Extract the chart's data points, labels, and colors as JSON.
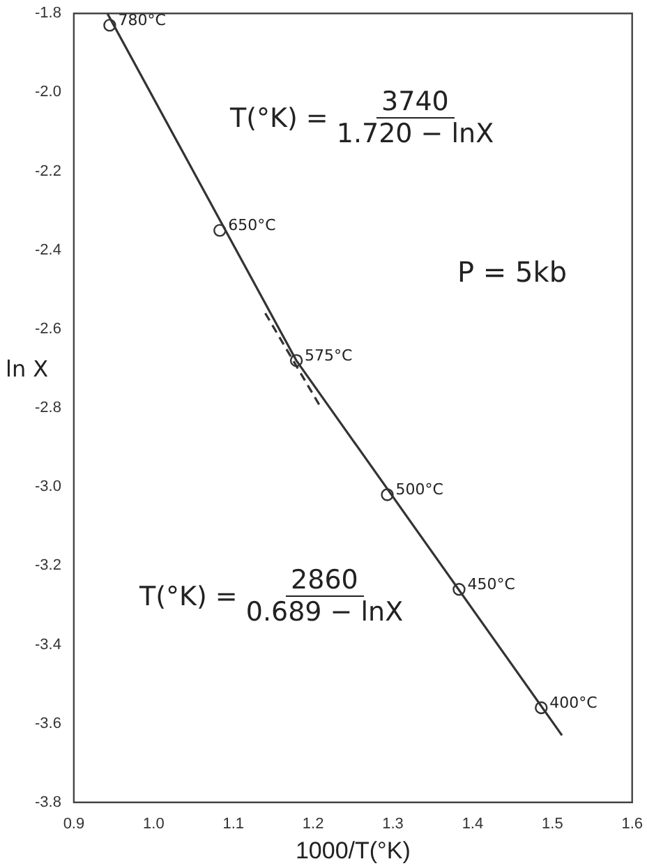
{
  "chart_data": {
    "type": "scatter",
    "xlabel": "1000/T(°K)",
    "ylabel": "ln X",
    "xlim": [
      0.9,
      1.6
    ],
    "xticks": [
      0.9,
      {
        "value": 1.0,
        "label": "1.0"
      },
      1.1,
      1.2,
      1.3,
      1.4,
      1.5,
      1.6
    ],
    "ylim": [
      -3.8,
      -1.8
    ],
    "yticks": [
      -3.8,
      -3.6,
      -3.4,
      -3.2,
      {
        "value": -3.0,
        "label": "-3.0"
      },
      -2.8,
      -2.6,
      -2.4,
      -2.2,
      {
        "value": -2.0,
        "label": "-2.0"
      },
      -1.8
    ],
    "grid": false,
    "legend": false,
    "series": [
      {
        "color": "#333333",
        "marker": "circle",
        "x": [
          0.945,
          1.083,
          1.179,
          1.293,
          1.383,
          1.486
        ],
        "values": [
          -1.83,
          -2.35,
          -2.68,
          -3.02,
          -3.26,
          -3.56
        ]
      },
      {
        "type": "line",
        "color": "#333333",
        "marker": "none",
        "line_style": "solid",
        "x": [
          0.942,
          1.179,
          1.512
        ],
        "values": [
          -1.8,
          -2.68,
          -3.63
        ]
      },
      {
        "type": "line",
        "color": "#333333",
        "marker": "none",
        "line_style": "dashed",
        "x": [
          1.14,
          1.21
        ],
        "values": [
          -2.56,
          -2.8
        ]
      }
    ],
    "annotations": [
      "T(°K) =",
      "3740",
      "1.720 − lnX",
      "P = 5kb",
      "T(°K) =",
      "2860",
      "0.689 − lnX",
      {
        "text": "780°C",
        "x": 0.945,
        "y": -1.83
      },
      {
        "text": "650°C",
        "x": 1.083,
        "y": -2.35
      },
      {
        "text": "575°C",
        "x": 1.179,
        "y": -2.68
      },
      {
        "text": "500°C",
        "x": 1.293,
        "y": -3.02
      },
      {
        "text": "450°C",
        "x": 1.383,
        "y": -3.26
      },
      {
        "text": "400°C",
        "x": 1.486,
        "y": -3.56
      }
    ]
  }
}
